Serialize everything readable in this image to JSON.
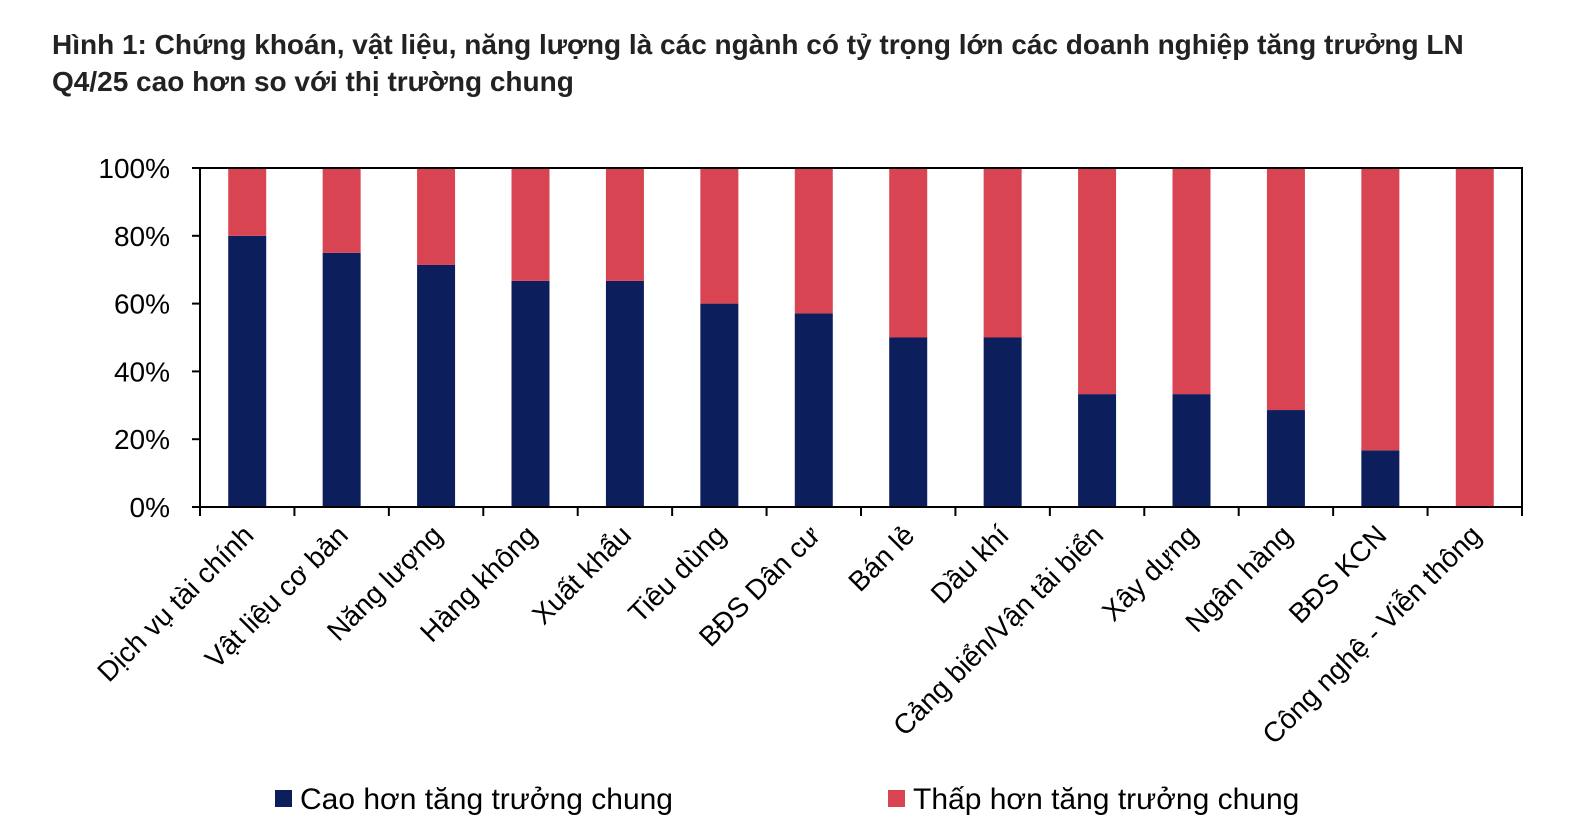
{
  "chart_data": {
    "type": "stacked_bar",
    "title": "Hình 1: Chứng khoán, vật liệu, năng lượng là các ngành có tỷ trọng lớn các doanh nghiệp tăng trưởng LN Q4/25 cao hơn so với thị trường chung",
    "categories": [
      "Dịch vụ tài chính",
      "Vật liệu cơ bản",
      "Năng lượng",
      "Hàng không",
      "Xuất khẩu",
      "Tiêu dùng",
      "BĐS Dân cư",
      "Bán lẻ",
      "Dầu khí",
      "Cảng biển/Vận tải biển",
      "Xây dựng",
      "Ngân hàng",
      "BĐS KCN",
      "Công nghệ - Viễn thông"
    ],
    "series": [
      {
        "name": "Cao hơn tăng trưởng chung",
        "color": "#0c1f5c",
        "values": [
          80,
          75,
          71.4,
          66.7,
          66.7,
          60,
          57.1,
          50,
          50,
          33.3,
          33.3,
          28.6,
          16.7,
          0
        ]
      },
      {
        "name": "Thấp hơn tăng trưởng chung",
        "color": "#d94452",
        "values": [
          20,
          25,
          28.6,
          33.3,
          33.3,
          40,
          42.9,
          50,
          50,
          66.7,
          66.7,
          71.4,
          83.3,
          100
        ]
      }
    ],
    "ylim": [
      0,
      100
    ],
    "yticks": [
      {
        "value": 0,
        "label": "0%"
      },
      {
        "value": 20,
        "label": "20%"
      },
      {
        "value": 40,
        "label": "40%"
      },
      {
        "value": 60,
        "label": "60%"
      },
      {
        "value": 80,
        "label": "80%"
      },
      {
        "value": 100,
        "label": "100%"
      }
    ],
    "grid": false,
    "legend": "bottom"
  }
}
